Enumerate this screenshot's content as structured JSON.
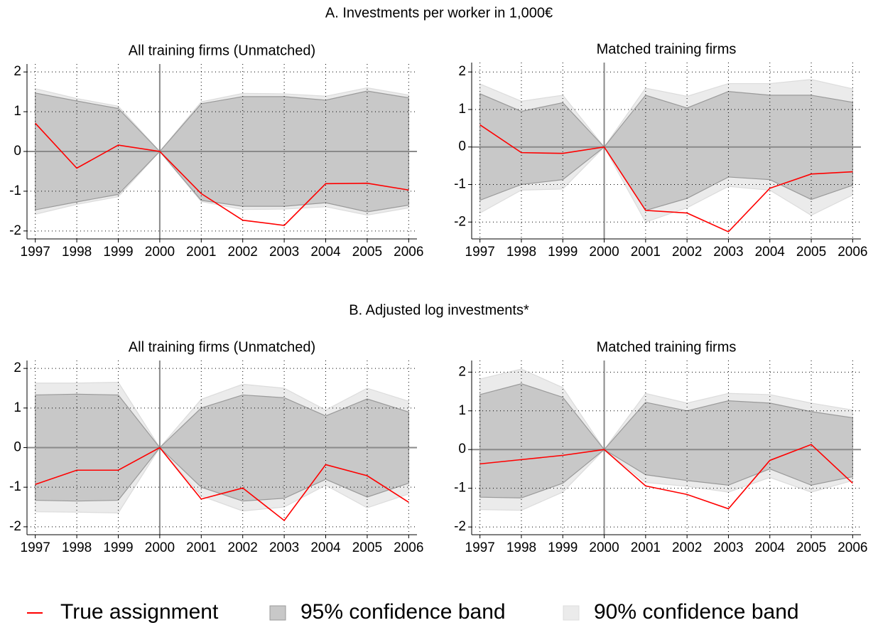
{
  "section_titles": [
    "A. Investments per worker in 1,000€",
    "B. Adjusted log investments*"
  ],
  "chart_data": [
    {
      "type": "line",
      "title": "All training firms (Unmatched)",
      "x": [
        1997,
        1998,
        1999,
        2000,
        2001,
        2002,
        2003,
        2004,
        2005,
        2006
      ],
      "xlim": [
        1996.8,
        2006.2
      ],
      "xticks": [
        1997,
        1998,
        1999,
        2000,
        2001,
        2002,
        2003,
        2004,
        2005,
        2006
      ],
      "ylim": [
        -2.2,
        2.2
      ],
      "yticks": [
        -2,
        -1,
        0,
        1,
        2
      ],
      "grid": true,
      "reference_lines": {
        "x": 2000,
        "y": 0
      },
      "series": [
        {
          "name": "True assignment",
          "color": "#ff0000",
          "values": [
            0.71,
            -0.42,
            0.16,
            0,
            -1.06,
            -1.73,
            -1.86,
            -0.81,
            -0.8,
            -0.97
          ]
        },
        {
          "name": "95% confidence band",
          "color": "#c8c8c8",
          "upper": [
            1.47,
            1.27,
            1.08,
            0,
            1.2,
            1.38,
            1.38,
            1.29,
            1.52,
            1.35
          ],
          "lower": [
            -1.47,
            -1.27,
            -1.08,
            0,
            -1.23,
            -1.38,
            -1.38,
            -1.29,
            -1.52,
            -1.35
          ]
        },
        {
          "name": "90% confidence band",
          "color": "#ebebeb",
          "upper": [
            1.58,
            1.33,
            1.14,
            0,
            1.25,
            1.46,
            1.45,
            1.39,
            1.6,
            1.42
          ],
          "lower": [
            -1.58,
            -1.33,
            -1.14,
            0,
            -1.26,
            -1.46,
            -1.45,
            -1.39,
            -1.6,
            -1.42
          ]
        }
      ]
    },
    {
      "type": "line",
      "title": "Matched training firms",
      "x": [
        1997,
        1998,
        1999,
        2000,
        2001,
        2002,
        2003,
        2004,
        2005,
        2006
      ],
      "xlim": [
        1996.8,
        2006.2
      ],
      "xticks": [
        1997,
        1998,
        1999,
        2000,
        2001,
        2002,
        2003,
        2004,
        2005,
        2006
      ],
      "ylim": [
        -2.45,
        2.25
      ],
      "yticks": [
        -2,
        -1,
        0,
        1,
        2
      ],
      "grid": true,
      "reference_lines": {
        "x": 2000,
        "y": 0
      },
      "series": [
        {
          "color": "#ff0000",
          "values": [
            0.59,
            -0.15,
            -0.17,
            0,
            -1.69,
            -1.76,
            -2.26,
            -1.1,
            -0.72,
            -0.66
          ]
        },
        {
          "color": "#c8c8c8",
          "upper": [
            1.42,
            0.95,
            1.18,
            0,
            1.38,
            1.04,
            1.48,
            1.38,
            1.38,
            1.19
          ],
          "lower": [
            -1.42,
            -1.0,
            -0.87,
            0,
            -1.69,
            -1.37,
            -0.8,
            -0.87,
            -1.4,
            -1.02
          ]
        },
        {
          "color": "#ebebeb",
          "upper": [
            1.68,
            1.22,
            1.38,
            0,
            1.57,
            1.35,
            1.69,
            1.69,
            1.8,
            1.55
          ],
          "lower": [
            -1.76,
            -1.15,
            -1.12,
            0,
            -2.0,
            -1.62,
            -1.05,
            -1.15,
            -1.82,
            -1.28
          ]
        }
      ]
    },
    {
      "type": "line",
      "title": "All training firms (Unmatched)",
      "x": [
        1997,
        1998,
        1999,
        2000,
        2001,
        2002,
        2003,
        2004,
        2005,
        2006
      ],
      "xlim": [
        1996.8,
        2006.2
      ],
      "xticks": [
        1997,
        1998,
        1999,
        2000,
        2001,
        2002,
        2003,
        2004,
        2005,
        2006
      ],
      "ylim": [
        -2.2,
        2.2
      ],
      "yticks": [
        -2,
        -1,
        0,
        1,
        2
      ],
      "grid": true,
      "reference_lines": {
        "x": 2000,
        "y": 0
      },
      "series": [
        {
          "color": "#ff0000",
          "values": [
            -0.93,
            -0.57,
            -0.57,
            0,
            -1.3,
            -1.02,
            -1.84,
            -0.43,
            -0.71,
            -1.38
          ]
        },
        {
          "color": "#c8c8c8",
          "upper": [
            1.33,
            1.35,
            1.33,
            0,
            1.0,
            1.33,
            1.26,
            0.8,
            1.23,
            0.9
          ],
          "lower": [
            -1.33,
            -1.35,
            -1.33,
            0,
            -1.0,
            -1.35,
            -1.28,
            -0.8,
            -1.25,
            -0.9
          ]
        },
        {
          "color": "#ebebeb",
          "upper": [
            1.63,
            1.63,
            1.65,
            0,
            1.22,
            1.6,
            1.5,
            0.95,
            1.5,
            1.17
          ],
          "lower": [
            -1.62,
            -1.63,
            -1.65,
            0,
            -1.22,
            -1.6,
            -1.5,
            -0.95,
            -1.52,
            -1.17
          ]
        }
      ]
    },
    {
      "type": "line",
      "title": "Matched training firms",
      "x": [
        1997,
        1998,
        1999,
        2000,
        2001,
        2002,
        2003,
        2004,
        2005,
        2006
      ],
      "xlim": [
        1996.8,
        2006.2
      ],
      "xticks": [
        1997,
        1998,
        1999,
        2000,
        2001,
        2002,
        2003,
        2004,
        2005,
        2006
      ],
      "ylim": [
        -2.2,
        2.3
      ],
      "yticks": [
        -2,
        -1,
        0,
        1,
        2
      ],
      "grid": true,
      "reference_lines": {
        "x": 2000,
        "y": 0
      },
      "series": [
        {
          "color": "#ff0000",
          "values": [
            -0.37,
            -0.26,
            -0.15,
            0,
            -0.94,
            -1.16,
            -1.53,
            -0.28,
            0.13,
            -0.87
          ]
        },
        {
          "color": "#c8c8c8",
          "upper": [
            1.42,
            1.7,
            1.35,
            0,
            1.22,
            1.0,
            1.26,
            1.2,
            0.98,
            0.82
          ],
          "lower": [
            -1.23,
            -1.25,
            -0.87,
            0,
            -0.65,
            -0.8,
            -0.92,
            -0.5,
            -0.92,
            -0.7
          ]
        },
        {
          "color": "#ebebeb",
          "upper": [
            1.82,
            2.08,
            1.6,
            0,
            1.45,
            1.2,
            1.45,
            1.42,
            1.2,
            1.02
          ],
          "lower": [
            -1.55,
            -1.57,
            -1.1,
            0,
            -0.85,
            -0.95,
            -1.1,
            -0.72,
            -1.1,
            -0.8
          ]
        }
      ]
    }
  ]
}
